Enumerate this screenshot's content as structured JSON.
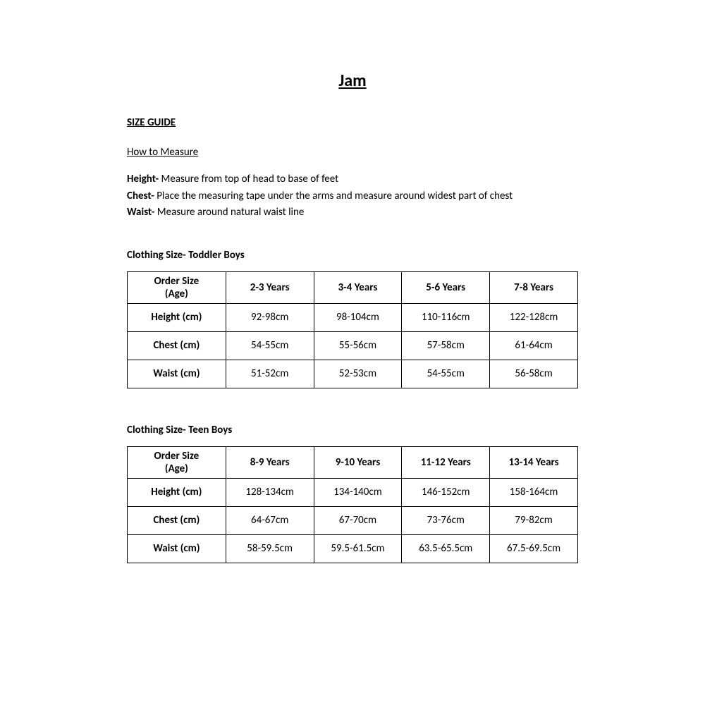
{
  "title": "Jam",
  "size_guide_label": "SIZE GUIDE",
  "how_to_measure_label": "How to Measure",
  "instructions": [
    {
      "label": "Height-",
      "text": "  Measure from top of head to base of feet"
    },
    {
      "label": "Chest-",
      "text": "  Place the measuring tape under the arms and measure around widest part of chest"
    },
    {
      "label": "Waist-",
      "text": "  Measure around natural waist line"
    }
  ],
  "tables": [
    {
      "title": "Clothing Size- Toddler Boys",
      "first_header_line1": "Order Size",
      "first_header_line2": "(Age)",
      "columns": [
        "2-3 Years",
        "3-4 Years",
        "5-6 Years",
        "7-8 Years"
      ],
      "rows": [
        {
          "label": "Height (cm)",
          "cells": [
            "92-98cm",
            "98-104cm",
            "110-116cm",
            "122-128cm"
          ]
        },
        {
          "label": "Chest (cm)",
          "cells": [
            "54-55cm",
            "55-56cm",
            "57-58cm",
            "61-64cm"
          ]
        },
        {
          "label": "Waist (cm)",
          "cells": [
            "51-52cm",
            "52-53cm",
            "54-55cm",
            "56-58cm"
          ]
        }
      ]
    },
    {
      "title": "Clothing Size- Teen Boys",
      "first_header_line1": "Order Size",
      "first_header_line2": "(Age)",
      "columns": [
        "8-9 Years",
        "9-10 Years",
        "11-12 Years",
        "13-14 Years"
      ],
      "rows": [
        {
          "label": "Height (cm)",
          "cells": [
            "128-134cm",
            "134-140cm",
            "146-152cm",
            "158-164cm"
          ]
        },
        {
          "label": "Chest (cm)",
          "cells": [
            "64-67cm",
            "67-70cm",
            "73-76cm",
            "79-82cm"
          ]
        },
        {
          "label": "Waist (cm)",
          "cells": [
            "58-59.5cm",
            "59.5-61.5cm",
            "63.5-65.5cm",
            "67.5-69.5cm"
          ]
        }
      ]
    }
  ]
}
